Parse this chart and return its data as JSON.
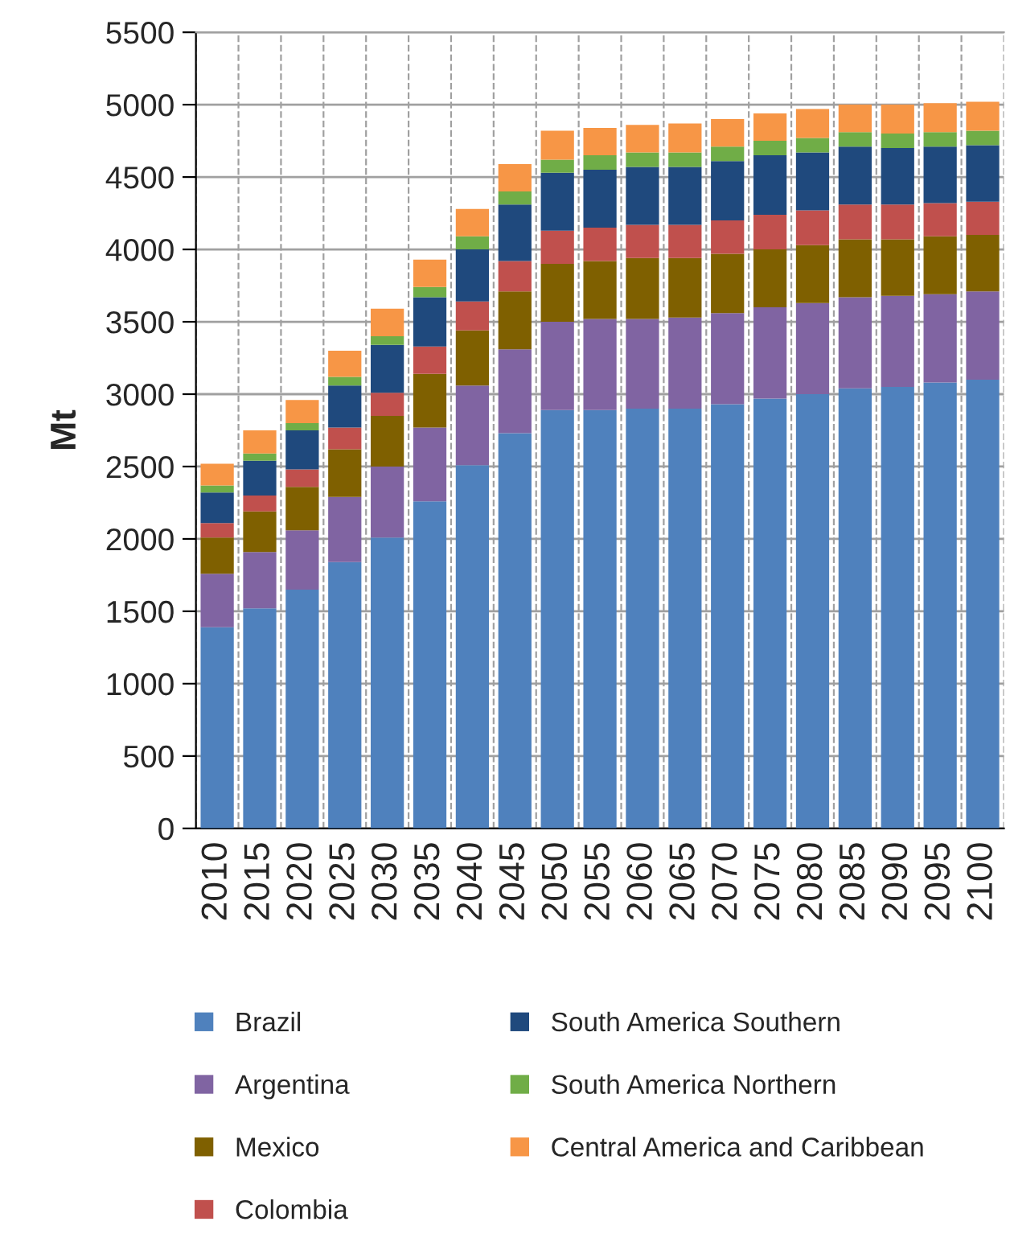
{
  "chart_data": {
    "type": "bar",
    "stacked": true,
    "ylabel": "Mt",
    "categories": [
      "2010",
      "2015",
      "2020",
      "2025",
      "2030",
      "2035",
      "2040",
      "2045",
      "2050",
      "2055",
      "2060",
      "2065",
      "2070",
      "2075",
      "2080",
      "2085",
      "2090",
      "2095",
      "2100"
    ],
    "ylim": [
      0,
      5500
    ],
    "yticks": [
      0,
      500,
      1000,
      1500,
      2000,
      2500,
      3000,
      3500,
      4000,
      4500,
      5000,
      5500
    ],
    "grid": true,
    "legend": "bottom",
    "series": [
      {
        "name": "Brazil",
        "color": "#4f81bd",
        "values": [
          1390,
          1520,
          1650,
          1840,
          2010,
          2260,
          2510,
          2730,
          2890,
          2890,
          2900,
          2900,
          2930,
          2970,
          3000,
          3040,
          3050,
          3080,
          3100
        ]
      },
      {
        "name": "Argentina",
        "color": "#8064a2",
        "values": [
          370,
          390,
          410,
          450,
          490,
          510,
          550,
          580,
          610,
          630,
          620,
          630,
          630,
          630,
          630,
          630,
          630,
          610,
          610
        ]
      },
      {
        "name": "Mexico",
        "color": "#7f6000",
        "values": [
          250,
          280,
          300,
          330,
          350,
          370,
          380,
          400,
          400,
          400,
          420,
          410,
          410,
          400,
          400,
          400,
          390,
          400,
          390
        ]
      },
      {
        "name": "Colombia",
        "color": "#c0504d",
        "values": [
          100,
          110,
          120,
          150,
          160,
          190,
          200,
          210,
          230,
          230,
          230,
          230,
          230,
          240,
          240,
          240,
          240,
          230,
          230
        ]
      },
      {
        "name": "South America Southern",
        "color": "#1f497d",
        "values": [
          210,
          240,
          270,
          290,
          330,
          340,
          360,
          390,
          400,
          400,
          400,
          400,
          410,
          410,
          400,
          400,
          390,
          390,
          390
        ]
      },
      {
        "name": "South America Northern",
        "color": "#70ad47",
        "values": [
          50,
          50,
          50,
          60,
          60,
          70,
          90,
          90,
          90,
          100,
          100,
          100,
          100,
          100,
          100,
          100,
          100,
          100,
          100
        ]
      },
      {
        "name": "Central America and Caribbean",
        "color": "#f79646",
        "values": [
          150,
          160,
          160,
          180,
          190,
          190,
          190,
          190,
          200,
          190,
          190,
          200,
          190,
          190,
          200,
          190,
          200,
          200,
          200
        ]
      }
    ]
  }
}
